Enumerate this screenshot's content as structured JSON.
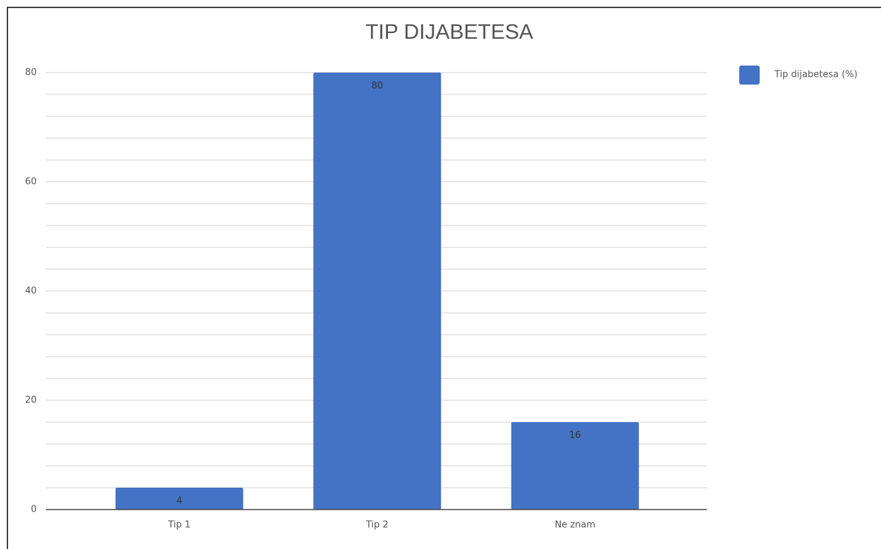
{
  "chart_data": {
    "type": "bar",
    "title": "TIP DIJABETESA",
    "categories": [
      "Tip 1",
      "Tip 2",
      "Ne znam"
    ],
    "series": [
      {
        "name": "Tip dijabetesa (%)",
        "color": "#4472c4",
        "values": [
          4,
          80,
          16
        ]
      }
    ],
    "ylim": [
      0,
      80
    ],
    "yticks": [
      0,
      20,
      40,
      60,
      80
    ],
    "grid": true,
    "legend": "right"
  }
}
